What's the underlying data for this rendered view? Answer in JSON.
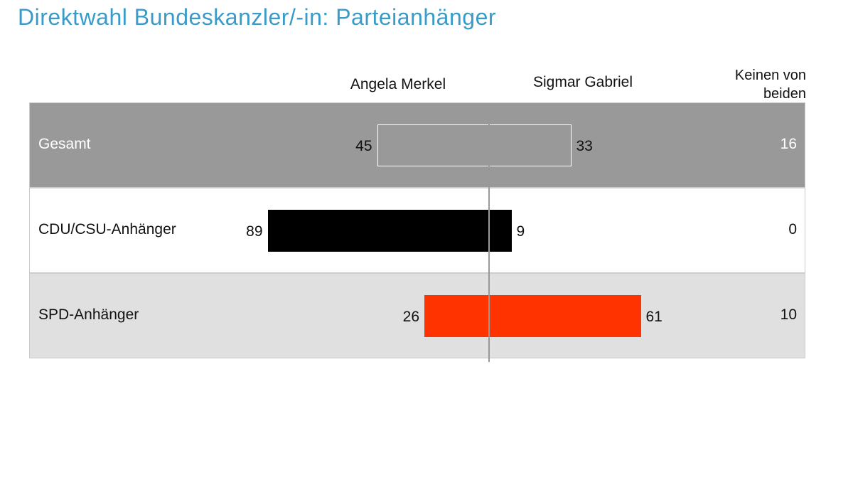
{
  "chart_data": {
    "type": "diverging_bar",
    "title": "Direktwahl Bundeskanzler/-in: Parteianhänger",
    "categories": [
      "Gesamt",
      "CDU/CSU-Anhänger",
      "SPD-Anhänger"
    ],
    "series": [
      {
        "name": "Angela Merkel",
        "values": [
          45,
          89,
          26
        ]
      },
      {
        "name": "Sigmar Gabriel",
        "values": [
          33,
          9,
          61
        ]
      },
      {
        "name": "Keinen von beiden",
        "values": [
          16,
          0,
          10
        ]
      }
    ],
    "bar_colors": [
      "#999999",
      "#000000",
      "#ff3300"
    ]
  }
}
